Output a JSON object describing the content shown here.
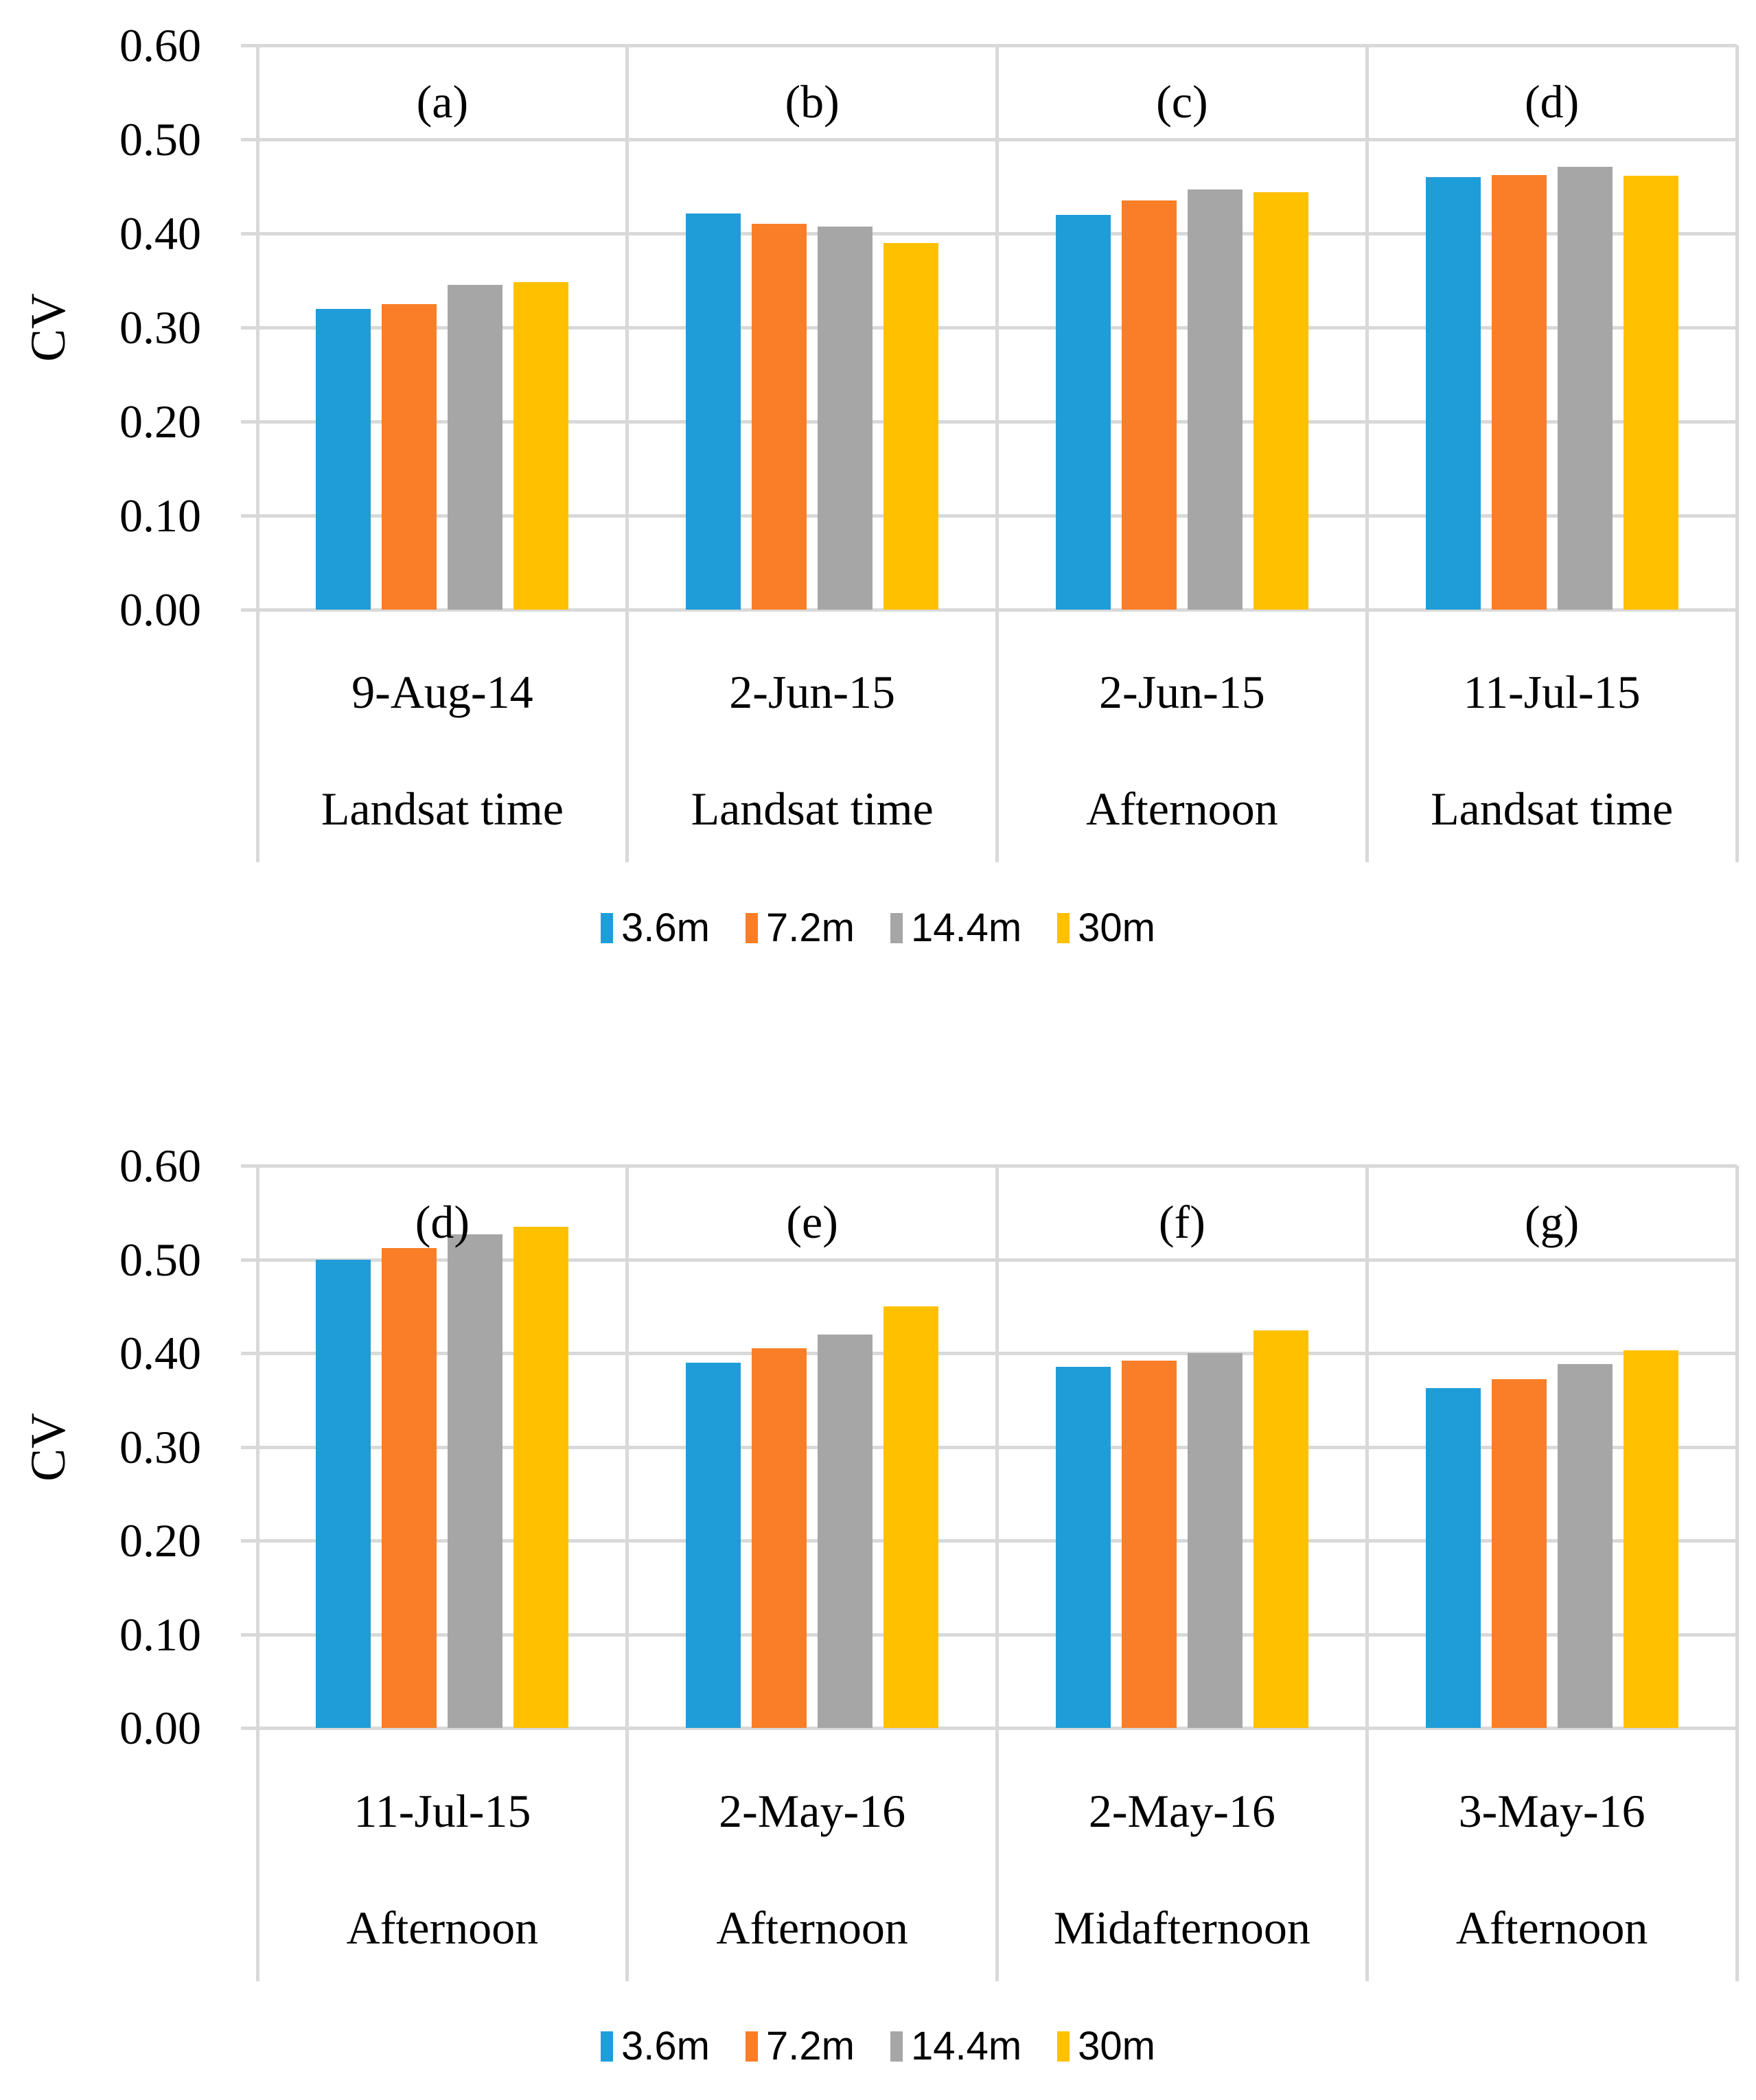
{
  "figure": {
    "background": "#ffffff",
    "grid_color": "#D9D9D9",
    "text_color": "#000000",
    "y_axis_title": "CV",
    "legend": [
      {
        "label": "3.6m",
        "color": "#1F9DD9"
      },
      {
        "label": "7.2m",
        "color": "#F97E27"
      },
      {
        "label": "14.4m",
        "color": "#A6A6A6"
      },
      {
        "label": "30m",
        "color": "#FFC000"
      }
    ]
  },
  "chart_data": [
    {
      "type": "bar",
      "title": "",
      "xlabel": "",
      "ylabel": "CV",
      "ylim": [
        0,
        0.6
      ],
      "yticks": [
        "0.60",
        "0.50",
        "0.40",
        "0.30",
        "0.20",
        "0.10",
        "0.00"
      ],
      "grid": true,
      "legend_position": "bottom",
      "series_names": [
        "3.6m",
        "7.2m",
        "14.4m",
        "30m"
      ],
      "panels": [
        {
          "panel_label": "(a)",
          "date": "9-Aug-14",
          "time": "Landsat time",
          "values": [
            0.32,
            0.325,
            0.345,
            0.348
          ]
        },
        {
          "panel_label": "(b)",
          "date": "2-Jun-15",
          "time": "Landsat time",
          "values": [
            0.421,
            0.41,
            0.407,
            0.39
          ]
        },
        {
          "panel_label": "(c)",
          "date": "2-Jun-15",
          "time": "Afternoon",
          "values": [
            0.42,
            0.435,
            0.447,
            0.444
          ]
        },
        {
          "panel_label": "(d)",
          "date": "11-Jul-15",
          "time": "Landsat time",
          "values": [
            0.46,
            0.462,
            0.471,
            0.461
          ]
        }
      ]
    },
    {
      "type": "bar",
      "title": "",
      "xlabel": "",
      "ylabel": "CV",
      "ylim": [
        0,
        0.6
      ],
      "yticks": [
        "0.60",
        "0.50",
        "0.40",
        "0.30",
        "0.20",
        "0.10",
        "0.00"
      ],
      "grid": true,
      "legend_position": "bottom",
      "series_names": [
        "3.6m",
        "7.2m",
        "14.4m",
        "30m"
      ],
      "panels": [
        {
          "panel_label": "(d)",
          "date": "11-Jul-15",
          "time": "Afternoon",
          "values": [
            0.5,
            0.512,
            0.527,
            0.535
          ]
        },
        {
          "panel_label": "(e)",
          "date": "2-May-16",
          "time": "Afternoon",
          "values": [
            0.39,
            0.405,
            0.42,
            0.45
          ]
        },
        {
          "panel_label": "(f)",
          "date": "2-May-16",
          "time": "Midafternoon",
          "values": [
            0.385,
            0.392,
            0.4,
            0.424
          ]
        },
        {
          "panel_label": "(g)",
          "date": "3-May-16",
          "time": "Afternoon",
          "values": [
            0.363,
            0.372,
            0.388,
            0.403
          ]
        }
      ]
    }
  ]
}
